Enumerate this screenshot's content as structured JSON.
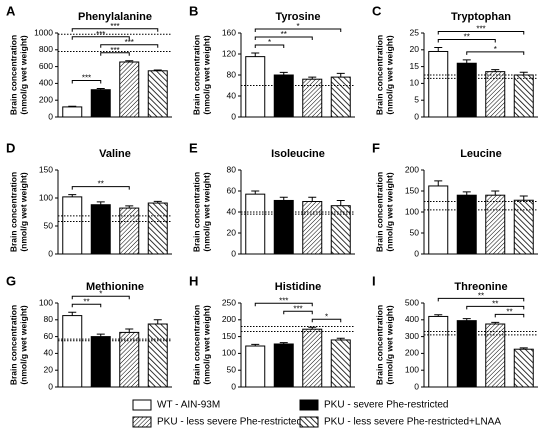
{
  "chart_data": [
    {
      "type": "bar",
      "panel": "A",
      "title": "Phenylalanine",
      "y_label": [
        "Brain concentration",
        "(nmol/g wet weight)"
      ],
      "values": [
        120,
        325,
        655,
        550
      ],
      "errors": [
        8,
        15,
        15,
        10
      ],
      "ylim": [
        0,
        1000
      ],
      "yticks": [
        0,
        200,
        400,
        600,
        800,
        1000
      ],
      "reference_lines": [
        780,
        985
      ],
      "comparisons": [
        {
          "groups": [
            0,
            1
          ],
          "label": "***"
        },
        {
          "groups": [
            1,
            2
          ],
          "label": "***"
        },
        {
          "groups": [
            1,
            3
          ],
          "label": "***"
        },
        {
          "groups": [
            0,
            2
          ],
          "label": "***"
        },
        {
          "groups": [
            0,
            3
          ],
          "label": "***"
        }
      ]
    },
    {
      "type": "bar",
      "panel": "B",
      "title": "Tyrosine",
      "y_label": [
        "Brain concentration",
        "(nmol/g wet weight)"
      ],
      "values": [
        115,
        80,
        72,
        76
      ],
      "errors": [
        7,
        5,
        4,
        7
      ],
      "ylim": [
        0,
        160
      ],
      "yticks": [
        0,
        40,
        80,
        120,
        160
      ],
      "reference_lines": [
        60
      ],
      "comparisons": [
        {
          "groups": [
            0,
            1
          ],
          "label": "*"
        },
        {
          "groups": [
            0,
            2
          ],
          "label": "**"
        },
        {
          "groups": [
            0,
            3
          ],
          "label": "*"
        }
      ]
    },
    {
      "type": "bar",
      "panel": "C",
      "title": "Tryptophan",
      "y_label": [
        "Brain concentration",
        "(nmol/g wet weight)"
      ],
      "values": [
        19.5,
        16,
        13.5,
        12.5
      ],
      "errors": [
        1.2,
        1,
        0.6,
        0.8
      ],
      "ylim": [
        0,
        25
      ],
      "yticks": [
        0,
        5,
        10,
        15,
        20,
        25
      ],
      "reference_lines": [
        11.5,
        12.5
      ],
      "comparisons": [
        {
          "groups": [
            1,
            3
          ],
          "label": "*"
        },
        {
          "groups": [
            0,
            2
          ],
          "label": "**"
        },
        {
          "groups": [
            0,
            3
          ],
          "label": "***"
        }
      ]
    },
    {
      "type": "bar",
      "panel": "D",
      "title": "Valine",
      "y_label": [
        "Brain concentration",
        "(nmol/g wet weight)"
      ],
      "values": [
        102,
        88,
        82,
        91
      ],
      "errors": [
        4,
        5,
        4,
        3
      ],
      "ylim": [
        0,
        150
      ],
      "yticks": [
        0,
        50,
        100,
        150
      ],
      "reference_lines": [
        58,
        68
      ],
      "comparisons": [
        {
          "groups": [
            0,
            2
          ],
          "label": "**"
        }
      ]
    },
    {
      "type": "bar",
      "panel": "E",
      "title": "Isoleucine",
      "y_label": [
        "Brain concentration",
        "(nmol/g wet weight)"
      ],
      "values": [
        57,
        51,
        50,
        46
      ],
      "errors": [
        3,
        3,
        4,
        5
      ],
      "ylim": [
        0,
        80
      ],
      "yticks": [
        0,
        20,
        40,
        60,
        80
      ],
      "reference_lines": [
        38,
        40
      ],
      "comparisons": []
    },
    {
      "type": "bar",
      "panel": "F",
      "title": "Leucine",
      "y_label": [
        "Brain concentration",
        "(nmol/g wet weight)"
      ],
      "values": [
        162,
        140,
        140,
        128
      ],
      "errors": [
        12,
        8,
        10,
        10
      ],
      "ylim": [
        0,
        200
      ],
      "yticks": [
        0,
        50,
        100,
        150,
        200
      ],
      "reference_lines": [
        105,
        125
      ],
      "comparisons": []
    },
    {
      "type": "bar",
      "panel": "G",
      "title": "Methionine",
      "y_label": [
        "Brain concentration",
        "(nmol/g wet weight)"
      ],
      "values": [
        85,
        60,
        65,
        75
      ],
      "errors": [
        4,
        3,
        4,
        5
      ],
      "ylim": [
        0,
        100
      ],
      "yticks": [
        0,
        20,
        40,
        60,
        80,
        100
      ],
      "reference_lines": [
        55,
        57
      ],
      "comparisons": [
        {
          "groups": [
            0,
            1
          ],
          "label": "**"
        },
        {
          "groups": [
            0,
            2
          ],
          "label": "*"
        }
      ]
    },
    {
      "type": "bar",
      "panel": "H",
      "title": "Histidine",
      "y_label": [
        "Brain concentration",
        "(nmol/g wet weight)"
      ],
      "values": [
        122,
        128,
        172,
        140
      ],
      "errors": [
        5,
        4,
        6,
        5
      ],
      "ylim": [
        0,
        250
      ],
      "yticks": [
        0,
        50,
        100,
        150,
        200,
        250
      ],
      "reference_lines": [
        165,
        180
      ],
      "comparisons": [
        {
          "groups": [
            2,
            3
          ],
          "label": "*"
        },
        {
          "groups": [
            1,
            2
          ],
          "label": "***"
        },
        {
          "groups": [
            0,
            2
          ],
          "label": "***"
        }
      ]
    },
    {
      "type": "bar",
      "panel": "I",
      "title": "Threonine",
      "y_label": [
        "Brain concentration",
        "(nmol/g wet weight)"
      ],
      "values": [
        420,
        395,
        375,
        225
      ],
      "errors": [
        10,
        12,
        10,
        8
      ],
      "ylim": [
        0,
        500
      ],
      "yticks": [
        0,
        100,
        200,
        300,
        400,
        500
      ],
      "reference_lines": [
        310,
        330
      ],
      "comparisons": [
        {
          "groups": [
            2,
            3
          ],
          "label": "**"
        },
        {
          "groups": [
            1,
            3
          ],
          "label": "**"
        },
        {
          "groups": [
            0,
            3
          ],
          "label": "**"
        }
      ]
    }
  ],
  "legend": [
    {
      "name": "WT - AIN-93M",
      "style": "open"
    },
    {
      "name": "PKU - severe Phe-restricted",
      "style": "solid"
    },
    {
      "name": "PKU - less severe Phe-restricted",
      "style": "hatch"
    },
    {
      "name": "PKU - less severe Phe-restricted+LNAA",
      "style": "hatch-bold"
    }
  ]
}
